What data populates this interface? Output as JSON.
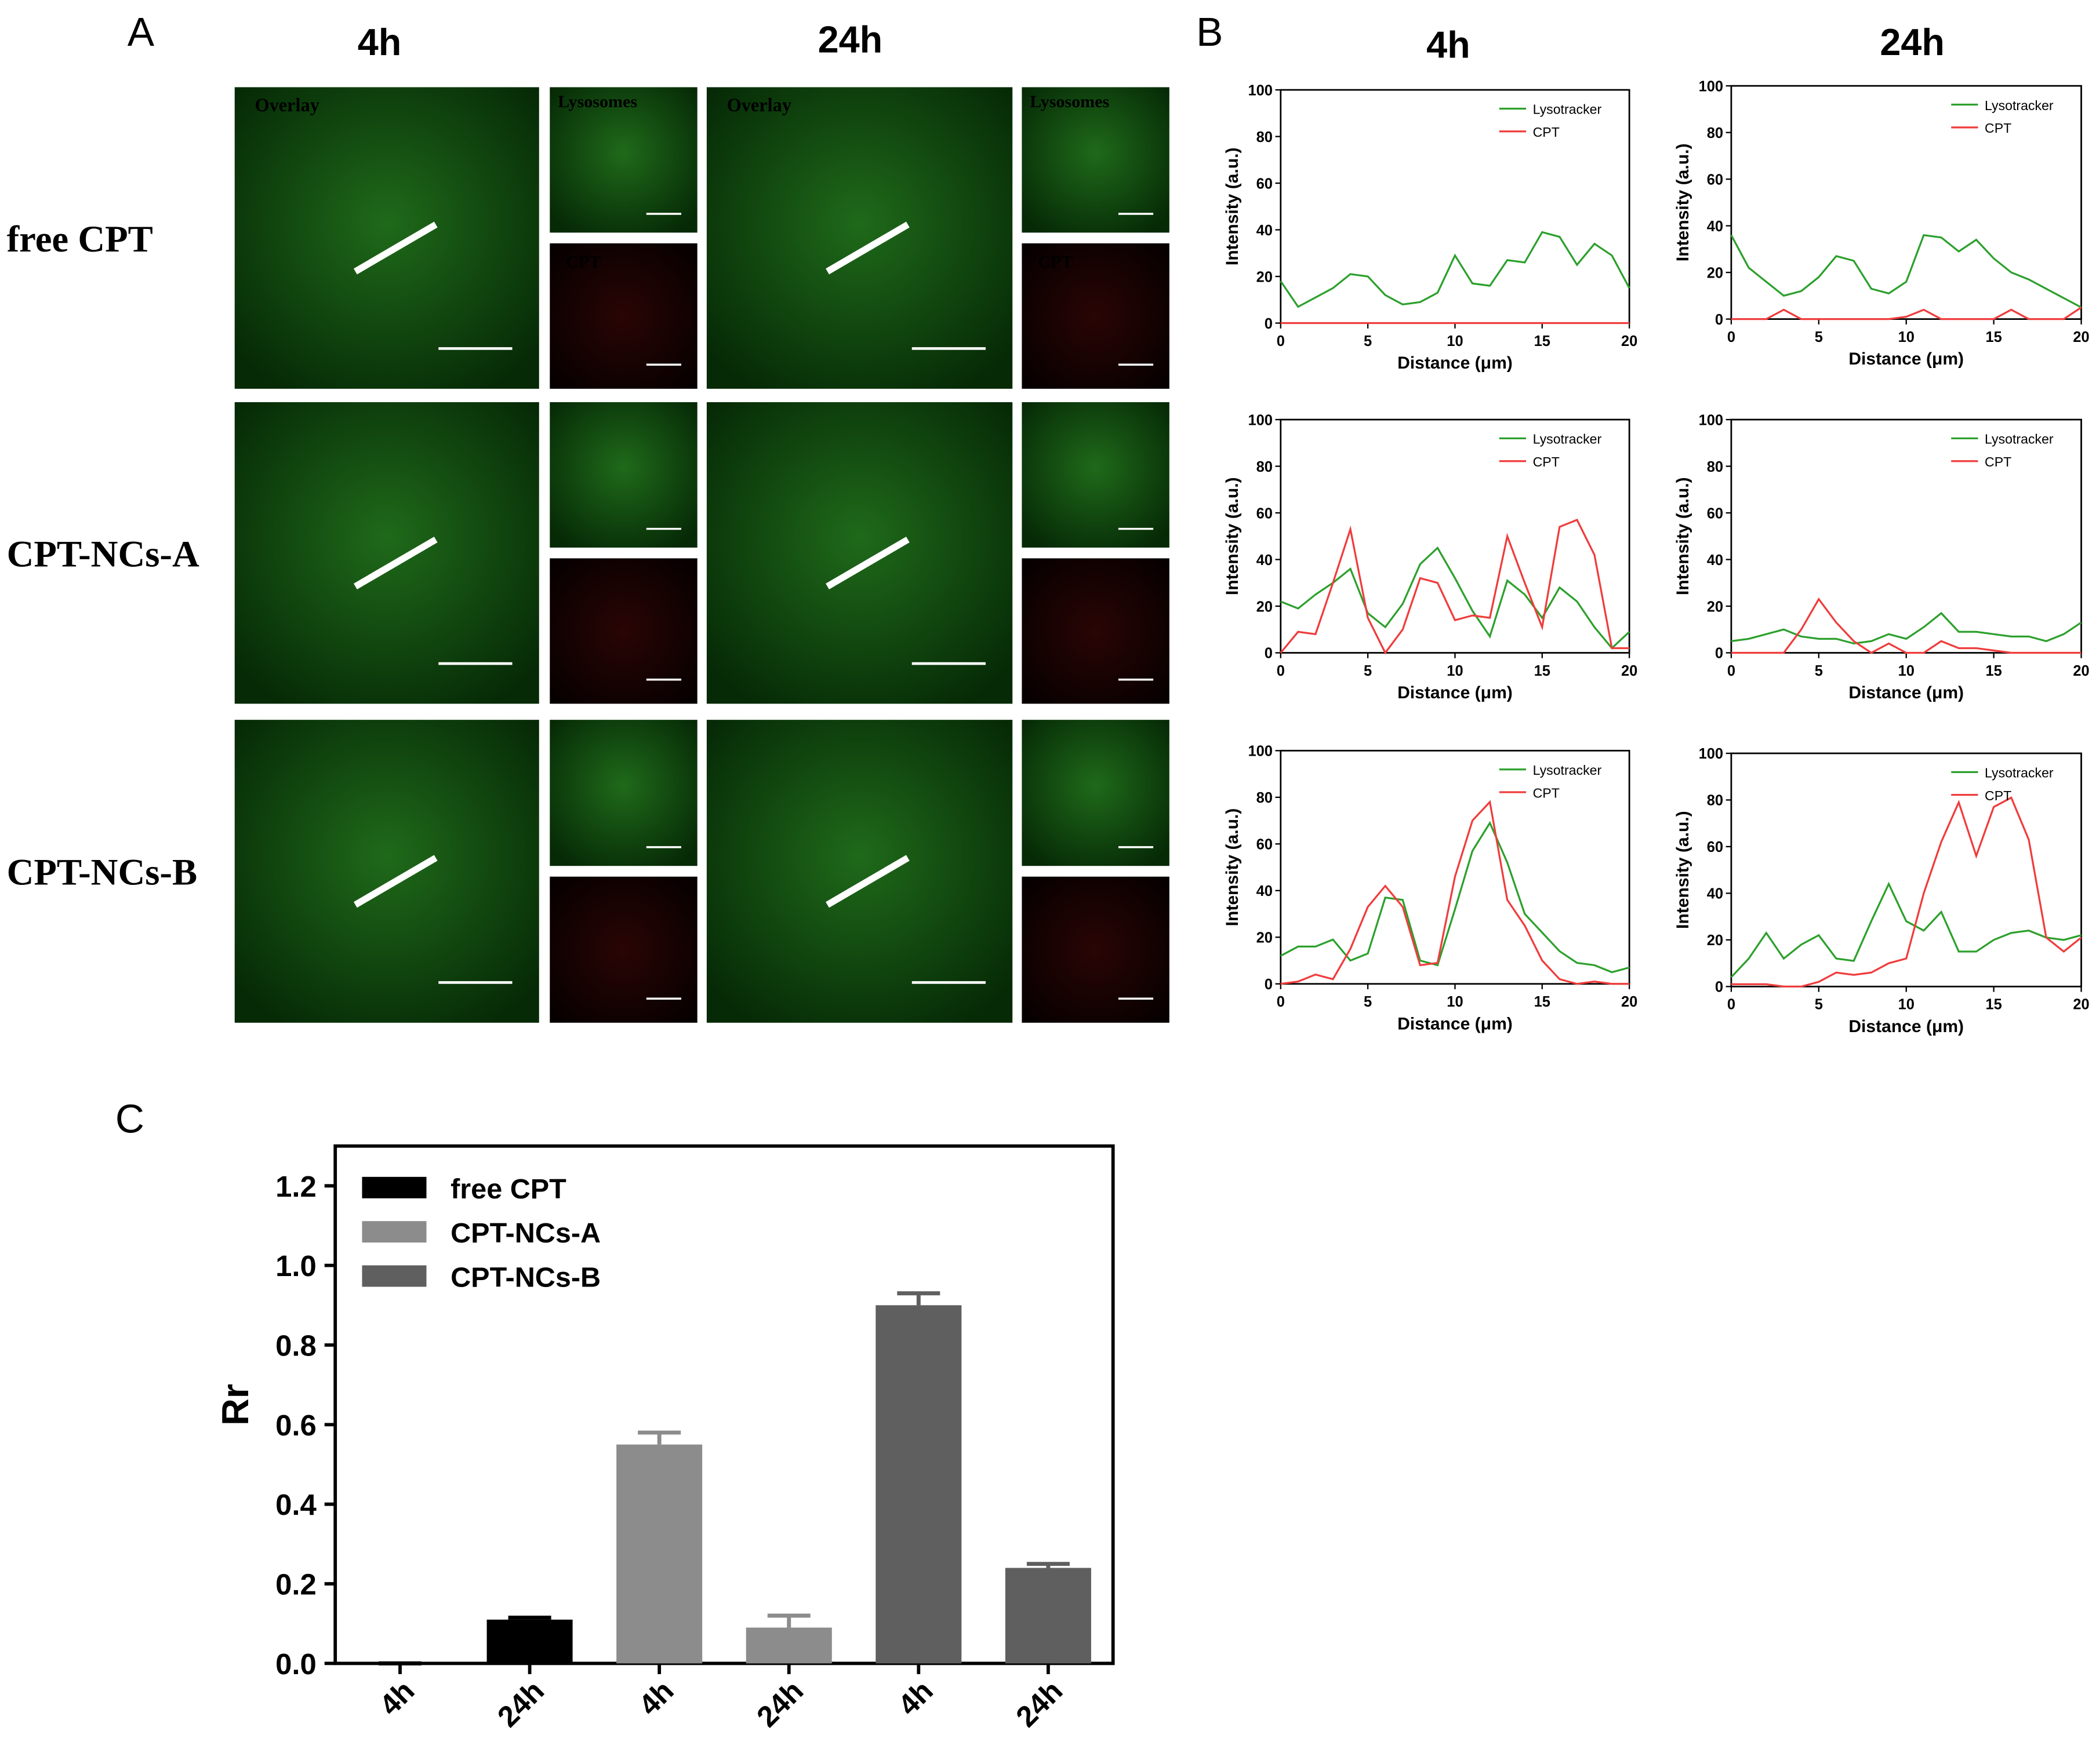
{
  "panel_labels": [
    "A",
    "B",
    "C"
  ],
  "micrographs": {
    "columns": [
      "4h",
      "24h"
    ],
    "rows": [
      "free CPT",
      "CPT-NCs-A",
      "CPT-NCs-B"
    ],
    "overlay": "Overlay",
    "lysosomes": "Lysosomes",
    "cpt": "CPT"
  },
  "profile_columns": [
    "4h",
    "24h"
  ],
  "chart_data": [
    {
      "type": "line",
      "xlabel": "Distance (μm)",
      "ylabel": "Intensity (a.u.)",
      "xlim": [
        0,
        20
      ],
      "ylim": [
        0,
        100
      ],
      "xticks": [
        0,
        5,
        10,
        15,
        20
      ],
      "yticks": [
        0,
        20,
        40,
        60,
        80,
        100
      ],
      "x": [
        0,
        1,
        2,
        3,
        4,
        5,
        6,
        7,
        8,
        9,
        10,
        11,
        12,
        13,
        14,
        15,
        16,
        17,
        18,
        19,
        20
      ],
      "series": [
        {
          "name": "Lysotracker",
          "color": "#2ca02c",
          "values": [
            18,
            7,
            11,
            15,
            21,
            20,
            12,
            8,
            9,
            13,
            29,
            17,
            16,
            27,
            26,
            39,
            37,
            25,
            34,
            29,
            15
          ]
        },
        {
          "name": "CPT",
          "color": "#f03c3c",
          "values": [
            0,
            0,
            0,
            0,
            0,
            0,
            0,
            0,
            0,
            0,
            0,
            0,
            0,
            0,
            0,
            0,
            0,
            0,
            0,
            0,
            0
          ]
        }
      ]
    },
    {
      "type": "line",
      "xlabel": "Distance (μm)",
      "ylabel": "Intensity (a.u.)",
      "xlim": [
        0,
        20
      ],
      "ylim": [
        0,
        100
      ],
      "xticks": [
        0,
        5,
        10,
        15,
        20
      ],
      "yticks": [
        0,
        20,
        40,
        60,
        80,
        100
      ],
      "x": [
        0,
        1,
        2,
        3,
        4,
        5,
        6,
        7,
        8,
        9,
        10,
        11,
        12,
        13,
        14,
        15,
        16,
        17,
        18,
        19,
        20
      ],
      "series": [
        {
          "name": "Lysotracker",
          "color": "#2ca02c",
          "values": [
            36,
            22,
            16,
            10,
            12,
            18,
            27,
            25,
            13,
            11,
            16,
            36,
            35,
            29,
            34,
            26,
            20,
            17,
            13,
            9,
            5
          ]
        },
        {
          "name": "CPT",
          "color": "#f03c3c",
          "values": [
            0,
            0,
            0,
            4,
            0,
            0,
            0,
            0,
            0,
            0,
            1,
            4,
            0,
            0,
            0,
            0,
            4,
            0,
            0,
            0,
            5
          ]
        }
      ]
    },
    {
      "type": "line",
      "xlabel": "Distance (μm)",
      "ylabel": "Intensity (a.u.)",
      "xlim": [
        0,
        20
      ],
      "ylim": [
        0,
        100
      ],
      "xticks": [
        0,
        5,
        10,
        15,
        20
      ],
      "yticks": [
        0,
        20,
        40,
        60,
        80,
        100
      ],
      "x": [
        0,
        1,
        2,
        3,
        4,
        5,
        6,
        7,
        8,
        9,
        10,
        11,
        12,
        13,
        14,
        15,
        16,
        17,
        18,
        19,
        20
      ],
      "series": [
        {
          "name": "Lysotracker",
          "color": "#2ca02c",
          "values": [
            22,
            19,
            25,
            30,
            36,
            17,
            11,
            21,
            38,
            45,
            32,
            18,
            7,
            31,
            25,
            15,
            28,
            22,
            11,
            2,
            9
          ]
        },
        {
          "name": "CPT",
          "color": "#f03c3c",
          "values": [
            0,
            9,
            8,
            30,
            53,
            15,
            0,
            10,
            32,
            30,
            14,
            16,
            15,
            50,
            30,
            11,
            54,
            57,
            42,
            2,
            2
          ]
        }
      ]
    },
    {
      "type": "line",
      "xlabel": "Distance (μm)",
      "ylabel": "Intensity (a.u.)",
      "xlim": [
        0,
        20
      ],
      "ylim": [
        0,
        100
      ],
      "xticks": [
        0,
        5,
        10,
        15,
        20
      ],
      "yticks": [
        0,
        20,
        40,
        60,
        80,
        100
      ],
      "x": [
        0,
        1,
        2,
        3,
        4,
        5,
        6,
        7,
        8,
        9,
        10,
        11,
        12,
        13,
        14,
        15,
        16,
        17,
        18,
        19,
        20
      ],
      "series": [
        {
          "name": "Lysotracker",
          "color": "#2ca02c",
          "values": [
            5,
            6,
            8,
            10,
            7,
            6,
            6,
            4,
            5,
            8,
            6,
            11,
            17,
            9,
            9,
            8,
            7,
            7,
            5,
            8,
            13
          ]
        },
        {
          "name": "CPT",
          "color": "#f03c3c",
          "values": [
            0,
            0,
            0,
            0,
            10,
            23,
            13,
            5,
            0,
            4,
            0,
            0,
            5,
            2,
            2,
            1,
            0,
            0,
            0,
            0,
            0
          ]
        }
      ]
    },
    {
      "type": "line",
      "xlabel": "Distance (μm)",
      "ylabel": "Intensity (a.u.)",
      "xlim": [
        0,
        20
      ],
      "ylim": [
        0,
        100
      ],
      "xticks": [
        0,
        5,
        10,
        15,
        20
      ],
      "yticks": [
        0,
        20,
        40,
        60,
        80,
        100
      ],
      "x": [
        0,
        1,
        2,
        3,
        4,
        5,
        6,
        7,
        8,
        9,
        10,
        11,
        12,
        13,
        14,
        15,
        16,
        17,
        18,
        19,
        20
      ],
      "series": [
        {
          "name": "Lysotracker",
          "color": "#2ca02c",
          "values": [
            12,
            16,
            16,
            19,
            10,
            13,
            37,
            36,
            10,
            8,
            32,
            57,
            69,
            52,
            30,
            22,
            14,
            9,
            8,
            5,
            7
          ]
        },
        {
          "name": "CPT",
          "color": "#f03c3c",
          "values": [
            0,
            1,
            4,
            2,
            15,
            33,
            42,
            33,
            8,
            9,
            46,
            70,
            78,
            36,
            25,
            10,
            2,
            0,
            1,
            0,
            0
          ]
        }
      ]
    },
    {
      "type": "line",
      "xlabel": "Distance (μm)",
      "ylabel": "Intensity (a.u.)",
      "xlim": [
        0,
        20
      ],
      "ylim": [
        0,
        100
      ],
      "xticks": [
        0,
        5,
        10,
        15,
        20
      ],
      "yticks": [
        0,
        20,
        40,
        60,
        80,
        100
      ],
      "x": [
        0,
        1,
        2,
        3,
        4,
        5,
        6,
        7,
        8,
        9,
        10,
        11,
        12,
        13,
        14,
        15,
        16,
        17,
        18,
        19,
        20
      ],
      "series": [
        {
          "name": "Lysotracker",
          "color": "#2ca02c",
          "values": [
            4,
            12,
            23,
            12,
            18,
            22,
            12,
            11,
            28,
            44,
            28,
            24,
            32,
            15,
            15,
            20,
            23,
            24,
            21,
            20,
            22
          ]
        },
        {
          "name": "CPT",
          "color": "#f03c3c",
          "values": [
            1,
            1,
            1,
            0,
            0,
            2,
            6,
            5,
            6,
            10,
            12,
            40,
            62,
            79,
            56,
            77,
            81,
            63,
            21,
            15,
            21
          ]
        }
      ]
    },
    {
      "type": "bar",
      "ylabel": "Rr",
      "categories": [
        "4h",
        "24h",
        "4h",
        "24h",
        "4h",
        "24h"
      ],
      "ylim": [
        0,
        1.3
      ],
      "yticks": [
        {
          "value": 0,
          "label": "0.0"
        },
        {
          "value": 0.2,
          "label": "0.2"
        },
        {
          "value": 0.4,
          "label": "0.4"
        },
        {
          "value": 0.6,
          "label": "0.6"
        },
        {
          "value": 0.8,
          "label": "0.8"
        },
        {
          "value": 1,
          "label": "1.0"
        },
        {
          "value": 1.2,
          "label": "1.2"
        }
      ],
      "series": [
        {
          "name": "free CPT",
          "color": "#000000",
          "values": [
            0,
            0.11,
            null,
            null,
            null,
            null
          ],
          "errors": [
            0,
            0.005,
            null,
            null,
            null,
            null
          ]
        },
        {
          "name": "CPT-NCs-A",
          "color": "#8c8c8c",
          "values": [
            null,
            null,
            0.55,
            0.09,
            null,
            null
          ],
          "errors": [
            null,
            null,
            0.03,
            0.03,
            null,
            null
          ]
        },
        {
          "name": "CPT-NCs-B",
          "color": "#5f5f5f",
          "values": [
            null,
            null,
            null,
            null,
            0.9,
            0.24
          ],
          "errors": [
            null,
            null,
            null,
            null,
            0.03,
            0.01
          ]
        }
      ]
    }
  ]
}
